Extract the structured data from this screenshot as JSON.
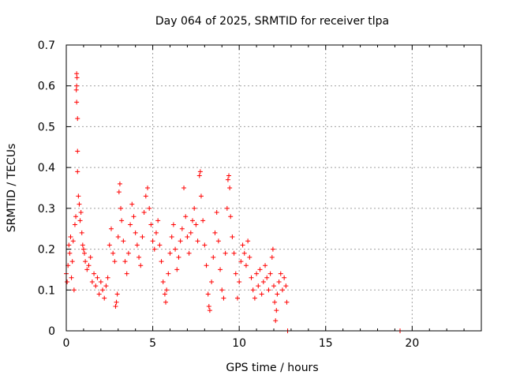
{
  "chart_data": {
    "type": "scatter",
    "title": "Day 064 of 2025, SRMTID for receiver tlpa",
    "xlabel": "GPS time / hours",
    "ylabel": "SRMTID / TECUs",
    "xlim": [
      0,
      24
    ],
    "ylim": [
      0,
      0.7
    ],
    "xticks": [
      0,
      5,
      10,
      15,
      20
    ],
    "xtick_labels": [
      "0",
      "5",
      "10",
      "15",
      "20"
    ],
    "yticks": [
      0,
      0.1,
      0.2,
      0.3,
      0.4,
      0.5,
      0.6,
      0.7
    ],
    "ytick_labels": [
      "0",
      "0.1",
      "0.2",
      "0.3",
      "0.4",
      "0.5",
      "0.6",
      "0.7"
    ],
    "grid": true,
    "marker": "+",
    "series": [
      {
        "name": "SRMTID",
        "color": "#ff0000",
        "points": [
          [
            0.0,
            0.14
          ],
          [
            0.05,
            0.12
          ],
          [
            0.1,
            0.16
          ],
          [
            0.15,
            0.21
          ],
          [
            0.2,
            0.19
          ],
          [
            0.25,
            0.23
          ],
          [
            0.3,
            0.13
          ],
          [
            0.35,
            0.17
          ],
          [
            0.4,
            0.22
          ],
          [
            0.45,
            0.1
          ],
          [
            0.5,
            0.26
          ],
          [
            0.55,
            0.28
          ],
          [
            0.6,
            0.63
          ],
          [
            0.62,
            0.62
          ],
          [
            0.6,
            0.6
          ],
          [
            0.58,
            0.59
          ],
          [
            0.6,
            0.56
          ],
          [
            0.65,
            0.52
          ],
          [
            0.65,
            0.44
          ],
          [
            0.65,
            0.39
          ],
          [
            0.7,
            0.33
          ],
          [
            0.75,
            0.31
          ],
          [
            0.8,
            0.27
          ],
          [
            0.85,
            0.29
          ],
          [
            0.9,
            0.24
          ],
          [
            0.95,
            0.21
          ],
          [
            1.0,
            0.2
          ],
          [
            1.05,
            0.19
          ],
          [
            1.1,
            0.17
          ],
          [
            1.2,
            0.15
          ],
          [
            1.3,
            0.16
          ],
          [
            1.4,
            0.18
          ],
          [
            1.5,
            0.12
          ],
          [
            1.6,
            0.14
          ],
          [
            1.7,
            0.11
          ],
          [
            1.8,
            0.13
          ],
          [
            1.9,
            0.09
          ],
          [
            2.0,
            0.12
          ],
          [
            2.1,
            0.1
          ],
          [
            2.2,
            0.08
          ],
          [
            2.3,
            0.11
          ],
          [
            2.4,
            0.13
          ],
          [
            2.5,
            0.21
          ],
          [
            2.6,
            0.25
          ],
          [
            2.7,
            0.19
          ],
          [
            2.8,
            0.17
          ],
          [
            2.85,
            0.06
          ],
          [
            2.9,
            0.07
          ],
          [
            2.95,
            0.09
          ],
          [
            3.0,
            0.23
          ],
          [
            3.05,
            0.34
          ],
          [
            3.1,
            0.36
          ],
          [
            3.15,
            0.3
          ],
          [
            3.2,
            0.27
          ],
          [
            3.3,
            0.22
          ],
          [
            3.4,
            0.17
          ],
          [
            3.5,
            0.14
          ],
          [
            3.6,
            0.19
          ],
          [
            3.7,
            0.26
          ],
          [
            3.8,
            0.31
          ],
          [
            3.9,
            0.28
          ],
          [
            4.0,
            0.24
          ],
          [
            4.1,
            0.21
          ],
          [
            4.2,
            0.18
          ],
          [
            4.3,
            0.16
          ],
          [
            4.4,
            0.23
          ],
          [
            4.5,
            0.29
          ],
          [
            4.6,
            0.33
          ],
          [
            4.7,
            0.35
          ],
          [
            4.8,
            0.3
          ],
          [
            4.9,
            0.26
          ],
          [
            5.0,
            0.22
          ],
          [
            5.1,
            0.2
          ],
          [
            5.2,
            0.24
          ],
          [
            5.3,
            0.27
          ],
          [
            5.4,
            0.21
          ],
          [
            5.5,
            0.17
          ],
          [
            5.6,
            0.12
          ],
          [
            5.7,
            0.09
          ],
          [
            5.75,
            0.07
          ],
          [
            5.8,
            0.1
          ],
          [
            5.9,
            0.14
          ],
          [
            6.0,
            0.19
          ],
          [
            6.1,
            0.23
          ],
          [
            6.2,
            0.26
          ],
          [
            6.3,
            0.2
          ],
          [
            6.4,
            0.15
          ],
          [
            6.5,
            0.18
          ],
          [
            6.6,
            0.22
          ],
          [
            6.7,
            0.25
          ],
          [
            6.8,
            0.35
          ],
          [
            6.9,
            0.28
          ],
          [
            7.0,
            0.23
          ],
          [
            7.1,
            0.19
          ],
          [
            7.2,
            0.24
          ],
          [
            7.3,
            0.27
          ],
          [
            7.4,
            0.3
          ],
          [
            7.5,
            0.26
          ],
          [
            7.6,
            0.22
          ],
          [
            7.7,
            0.38
          ],
          [
            7.75,
            0.39
          ],
          [
            7.8,
            0.33
          ],
          [
            7.9,
            0.27
          ],
          [
            8.0,
            0.21
          ],
          [
            8.1,
            0.16
          ],
          [
            8.2,
            0.09
          ],
          [
            8.25,
            0.06
          ],
          [
            8.3,
            0.05
          ],
          [
            8.4,
            0.12
          ],
          [
            8.5,
            0.18
          ],
          [
            8.6,
            0.24
          ],
          [
            8.7,
            0.29
          ],
          [
            8.8,
            0.22
          ],
          [
            8.9,
            0.15
          ],
          [
            9.0,
            0.1
          ],
          [
            9.1,
            0.08
          ],
          [
            9.2,
            0.19
          ],
          [
            9.3,
            0.3
          ],
          [
            9.35,
            0.37
          ],
          [
            9.4,
            0.38
          ],
          [
            9.45,
            0.35
          ],
          [
            9.5,
            0.28
          ],
          [
            9.6,
            0.23
          ],
          [
            9.7,
            0.19
          ],
          [
            9.8,
            0.14
          ],
          [
            9.9,
            0.08
          ],
          [
            10.0,
            0.12
          ],
          [
            10.1,
            0.17
          ],
          [
            10.2,
            0.21
          ],
          [
            10.3,
            0.19
          ],
          [
            10.4,
            0.16
          ],
          [
            10.5,
            0.22
          ],
          [
            10.6,
            0.18
          ],
          [
            10.7,
            0.13
          ],
          [
            10.8,
            0.1
          ],
          [
            10.9,
            0.08
          ],
          [
            11.0,
            0.14
          ],
          [
            11.1,
            0.11
          ],
          [
            11.2,
            0.15
          ],
          [
            11.3,
            0.09
          ],
          [
            11.4,
            0.12
          ],
          [
            11.5,
            0.16
          ],
          [
            11.6,
            0.13
          ],
          [
            11.7,
            0.1
          ],
          [
            11.8,
            0.14
          ],
          [
            11.9,
            0.18
          ],
          [
            11.95,
            0.2
          ],
          [
            12.0,
            0.11
          ],
          [
            12.05,
            0.07
          ],
          [
            12.1,
            0.025
          ],
          [
            12.15,
            0.05
          ],
          [
            12.2,
            0.09
          ],
          [
            12.3,
            0.12
          ],
          [
            12.4,
            0.14
          ],
          [
            12.5,
            0.1
          ],
          [
            12.6,
            0.13
          ],
          [
            12.7,
            0.11
          ],
          [
            12.75,
            0.07
          ],
          [
            12.8,
            0.0
          ],
          [
            19.3,
            0.0
          ]
        ]
      }
    ]
  }
}
